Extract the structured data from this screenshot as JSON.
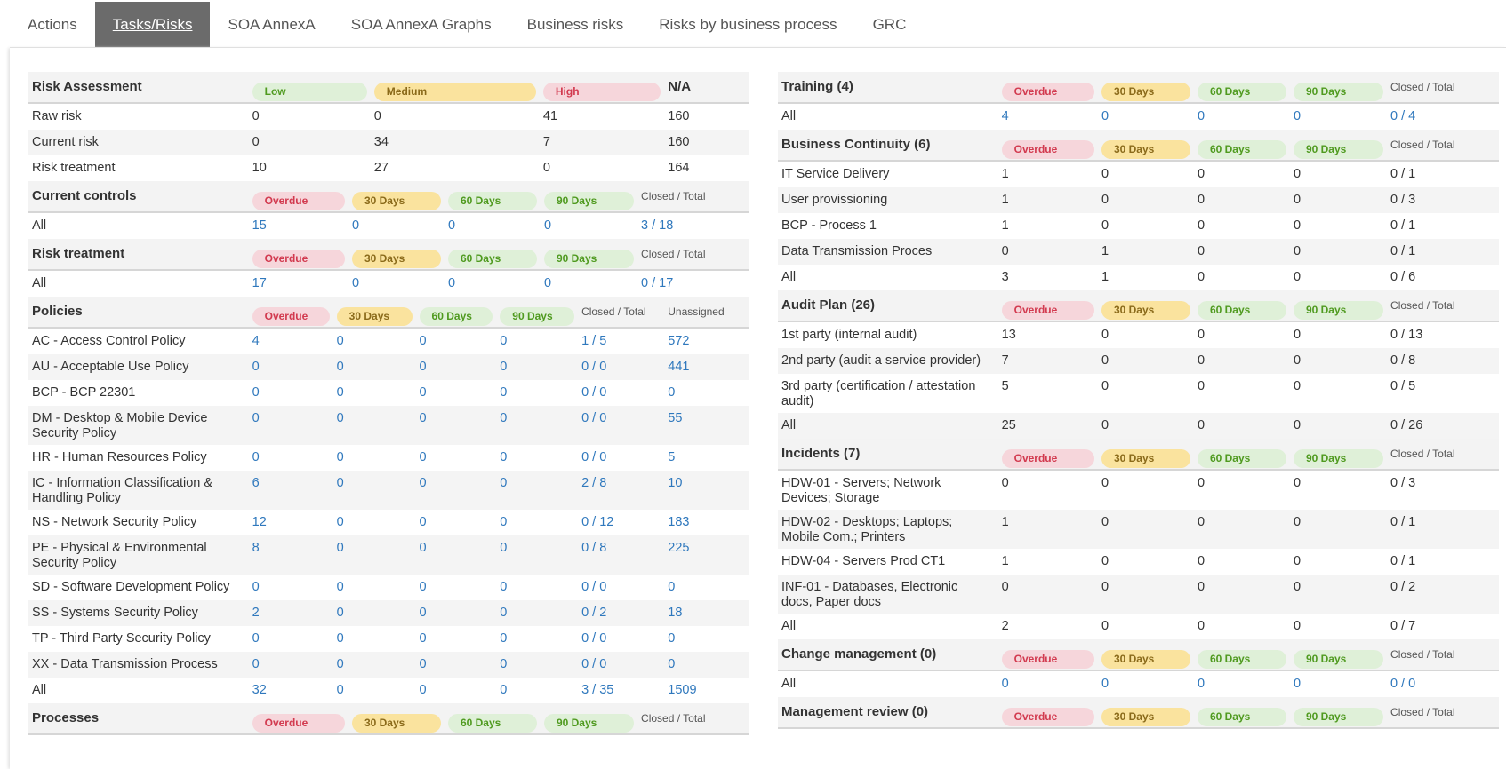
{
  "tabs": [
    "Actions",
    "Tasks/Risks",
    "SOA AnnexA",
    "SOA AnnexA Graphs",
    "Business risks",
    "Risks by business process",
    "GRC"
  ],
  "active_tab": 1,
  "left": {
    "sections": [
      {
        "title": "Risk Assessment",
        "links": false,
        "headers": [
          {
            "label": "Low",
            "badge": "green"
          },
          {
            "label": "Medium",
            "badge": "yellow"
          },
          {
            "label": "High",
            "badge": "red"
          },
          {
            "label": "N/A",
            "bold": true
          }
        ],
        "rows": [
          {
            "label": "Raw risk",
            "cells": [
              0,
              0,
              41,
              160
            ]
          },
          {
            "label": "Current risk",
            "cells": [
              0,
              34,
              7,
              160
            ]
          },
          {
            "label": "Risk treatment",
            "cells": [
              10,
              27,
              0,
              164
            ]
          }
        ]
      },
      {
        "title": "Current controls",
        "links": true,
        "headers": [
          {
            "label": "Overdue",
            "badge": "red"
          },
          {
            "label": "30 Days",
            "badge": "yellow"
          },
          {
            "label": "60 Days",
            "badge": "green"
          },
          {
            "label": "90 Days",
            "badge": "green"
          },
          {
            "label": "Closed / Total"
          }
        ],
        "rows": [
          {
            "label": "All",
            "cells": [
              15,
              0,
              0,
              0,
              "3 / 18"
            ]
          }
        ]
      },
      {
        "title": "Risk treatment",
        "links": true,
        "headers": [
          {
            "label": "Overdue",
            "badge": "red"
          },
          {
            "label": "30 Days",
            "badge": "yellow"
          },
          {
            "label": "60 Days",
            "badge": "green"
          },
          {
            "label": "90 Days",
            "badge": "green"
          },
          {
            "label": "Closed / Total"
          }
        ],
        "rows": [
          {
            "label": "All",
            "cells": [
              17,
              0,
              0,
              0,
              "0 / 17"
            ]
          }
        ]
      },
      {
        "title": "Policies",
        "links": true,
        "headers": [
          {
            "label": "Overdue",
            "badge": "red"
          },
          {
            "label": "30 Days",
            "badge": "yellow"
          },
          {
            "label": "60 Days",
            "badge": "green"
          },
          {
            "label": "90 Days",
            "badge": "green"
          },
          {
            "label": "Closed / Total"
          },
          {
            "label": "Unassigned"
          }
        ],
        "rows": [
          {
            "label": "AC - Access Control Policy",
            "cells": [
              4,
              0,
              0,
              0,
              "1 / 5",
              572
            ]
          },
          {
            "label": "AU - Acceptable Use Policy",
            "cells": [
              0,
              0,
              0,
              0,
              "0 / 0",
              441
            ]
          },
          {
            "label": "BCP - BCP 22301",
            "cells": [
              0,
              0,
              0,
              0,
              "0 / 0",
              0
            ]
          },
          {
            "label": "DM - Desktop & Mobile Device Security Policy",
            "cells": [
              0,
              0,
              0,
              0,
              "0 / 0",
              55
            ]
          },
          {
            "label": "HR - Human Resources Policy",
            "cells": [
              0,
              0,
              0,
              0,
              "0 / 0",
              5
            ]
          },
          {
            "label": "IC - Information Classification & Handling Policy",
            "cells": [
              6,
              0,
              0,
              0,
              "2 / 8",
              10
            ]
          },
          {
            "label": "NS - Network Security Policy",
            "cells": [
              12,
              0,
              0,
              0,
              "0 / 12",
              183
            ]
          },
          {
            "label": "PE - Physical & Environmental Security Policy",
            "cells": [
              8,
              0,
              0,
              0,
              "0 / 8",
              225
            ]
          },
          {
            "label": "SD - Software Development Policy",
            "cells": [
              0,
              0,
              0,
              0,
              "0 / 0",
              0
            ]
          },
          {
            "label": "SS - Systems Security Policy",
            "cells": [
              2,
              0,
              0,
              0,
              "0 / 2",
              18
            ]
          },
          {
            "label": "TP - Third Party Security Policy",
            "cells": [
              0,
              0,
              0,
              0,
              "0 / 0",
              0
            ]
          },
          {
            "label": "XX - Data Transmission Process",
            "cells": [
              0,
              0,
              0,
              0,
              "0 / 0",
              0
            ]
          },
          {
            "label": "All",
            "cells": [
              32,
              0,
              0,
              0,
              "3 / 35",
              1509
            ]
          }
        ]
      },
      {
        "title": "Processes",
        "links": true,
        "headers": [
          {
            "label": "Overdue",
            "badge": "red"
          },
          {
            "label": "30 Days",
            "badge": "yellow"
          },
          {
            "label": "60 Days",
            "badge": "green"
          },
          {
            "label": "90 Days",
            "badge": "green"
          },
          {
            "label": "Closed / Total"
          }
        ],
        "rows": []
      }
    ]
  },
  "right": {
    "sections": [
      {
        "title": "Training (4)",
        "links": true,
        "headers": [
          {
            "label": "Overdue",
            "badge": "red"
          },
          {
            "label": "30 Days",
            "badge": "yellow"
          },
          {
            "label": "60 Days",
            "badge": "green"
          },
          {
            "label": "90 Days",
            "badge": "green"
          },
          {
            "label": "Closed / Total"
          }
        ],
        "rows": [
          {
            "label": "All",
            "cells": [
              4,
              0,
              0,
              0,
              "0 / 4"
            ]
          }
        ]
      },
      {
        "title": "Business Continuity (6)",
        "links": false,
        "headers": [
          {
            "label": "Overdue",
            "badge": "red"
          },
          {
            "label": "30 Days",
            "badge": "yellow"
          },
          {
            "label": "60 Days",
            "badge": "green"
          },
          {
            "label": "90 Days",
            "badge": "green"
          },
          {
            "label": "Closed / Total"
          }
        ],
        "rows": [
          {
            "label": "IT Service Delivery",
            "cells": [
              1,
              0,
              0,
              0,
              "0 / 1"
            ]
          },
          {
            "label": "User provissioning",
            "cells": [
              1,
              0,
              0,
              0,
              "0 / 3"
            ]
          },
          {
            "label": "BCP - Process 1",
            "cells": [
              1,
              0,
              0,
              0,
              "0 / 1"
            ]
          },
          {
            "label": "Data Transmission Proces",
            "cells": [
              0,
              1,
              0,
              0,
              "0 / 1"
            ]
          },
          {
            "label": "All",
            "cells": [
              3,
              1,
              0,
              0,
              "0 / 6"
            ]
          }
        ]
      },
      {
        "title": "Audit Plan (26)",
        "links": false,
        "headers": [
          {
            "label": "Overdue",
            "badge": "red"
          },
          {
            "label": "30 Days",
            "badge": "yellow"
          },
          {
            "label": "60 Days",
            "badge": "green"
          },
          {
            "label": "90 Days",
            "badge": "green"
          },
          {
            "label": "Closed / Total"
          }
        ],
        "rows": [
          {
            "label": "1st party (internal audit)",
            "cells": [
              13,
              0,
              0,
              0,
              "0 / 13"
            ]
          },
          {
            "label": "2nd party (audit a service provider)",
            "cells": [
              7,
              0,
              0,
              0,
              "0 / 8"
            ]
          },
          {
            "label": "3rd party (certification / attestation audit)",
            "cells": [
              5,
              0,
              0,
              0,
              "0 / 5"
            ]
          },
          {
            "label": "All",
            "cells": [
              25,
              0,
              0,
              0,
              "0 / 26"
            ]
          }
        ]
      },
      {
        "title": "Incidents (7)",
        "links": false,
        "headers": [
          {
            "label": "Overdue",
            "badge": "red"
          },
          {
            "label": "30 Days",
            "badge": "yellow"
          },
          {
            "label": "60 Days",
            "badge": "green"
          },
          {
            "label": "90 Days",
            "badge": "green"
          },
          {
            "label": "Closed / Total"
          }
        ],
        "rows": [
          {
            "label": "HDW-01 - Servers; Network Devices; Storage",
            "cells": [
              0,
              0,
              0,
              0,
              "0 / 3"
            ]
          },
          {
            "label": "HDW-02 - Desktops; Laptops; Mobile Com.; Printers",
            "cells": [
              1,
              0,
              0,
              0,
              "0 / 1"
            ]
          },
          {
            "label": "HDW-04 - Servers Prod CT1",
            "cells": [
              1,
              0,
              0,
              0,
              "0 / 1"
            ]
          },
          {
            "label": "INF-01 - Databases, Electronic docs, Paper docs",
            "cells": [
              0,
              0,
              0,
              0,
              "0 / 2"
            ]
          },
          {
            "label": "All",
            "cells": [
              2,
              0,
              0,
              0,
              "0 / 7"
            ]
          }
        ]
      },
      {
        "title": "Change management (0)",
        "links": true,
        "headers": [
          {
            "label": "Overdue",
            "badge": "red"
          },
          {
            "label": "30 Days",
            "badge": "yellow"
          },
          {
            "label": "60 Days",
            "badge": "green"
          },
          {
            "label": "90 Days",
            "badge": "green"
          },
          {
            "label": "Closed / Total"
          }
        ],
        "rows": [
          {
            "label": "All",
            "cells": [
              0,
              0,
              0,
              0,
              "0 / 0"
            ]
          }
        ]
      },
      {
        "title": "Management review (0)",
        "links": true,
        "headers": [
          {
            "label": "Overdue",
            "badge": "red"
          },
          {
            "label": "30 Days",
            "badge": "yellow"
          },
          {
            "label": "60 Days",
            "badge": "green"
          },
          {
            "label": "90 Days",
            "badge": "green"
          },
          {
            "label": "Closed / Total"
          }
        ],
        "rows": []
      }
    ]
  }
}
